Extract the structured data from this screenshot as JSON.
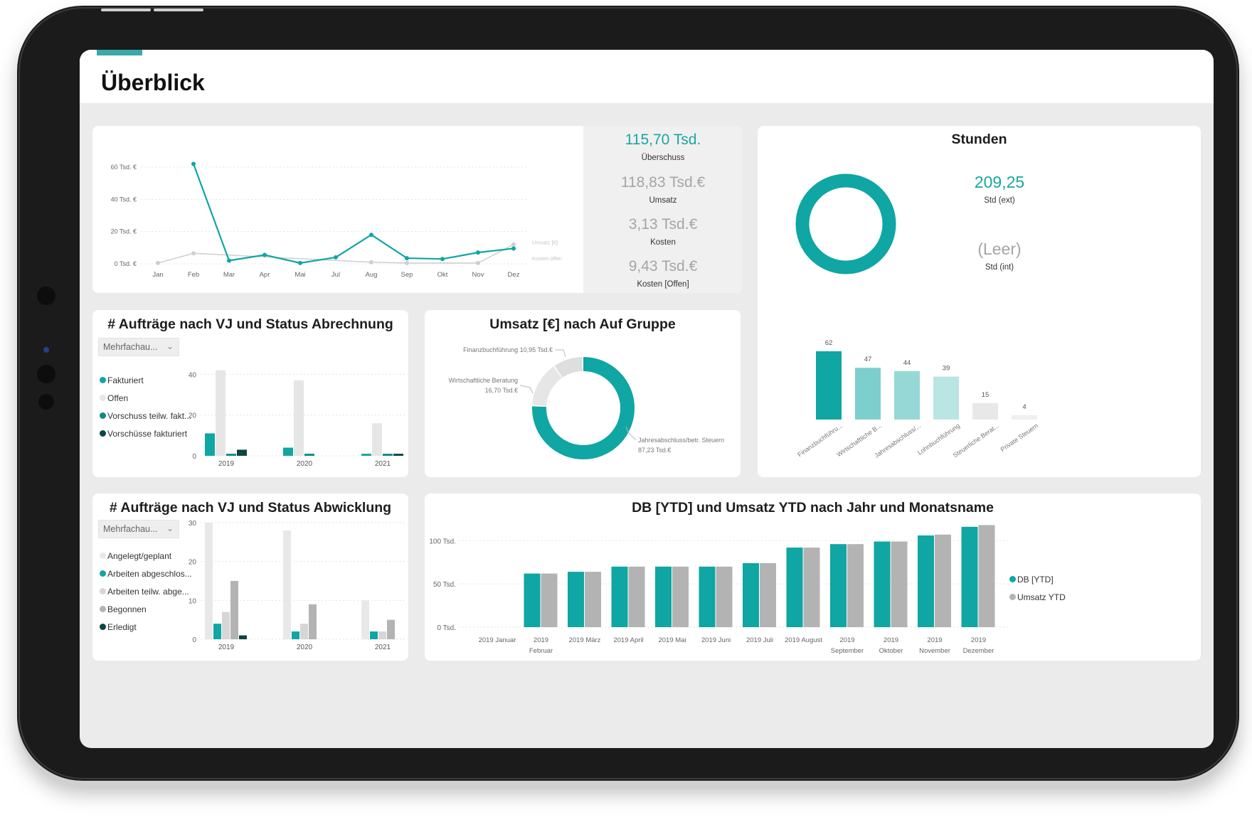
{
  "page": {
    "title": "Überblick"
  },
  "colors": {
    "teal": "#0fa6a3",
    "light_teal": "#7ccfcc",
    "gray": "#bdbdbd",
    "light_gray": "#e6e6e6",
    "dark_teal": "#0b6161",
    "dark": "#0d4444"
  },
  "kpi": [
    {
      "value": "115,70 Tsd.",
      "label": "Überschuss",
      "color": "#18a6a3"
    },
    {
      "value": "118,83 Tsd.€",
      "label": "Umsatz",
      "color": "#a5a5a5"
    },
    {
      "value": "3,13 Tsd.€",
      "label": "Kosten",
      "color": "#a5a5a5"
    },
    {
      "value": "9,43 Tsd.€",
      "label": "Kosten [Offen]",
      "color": "#a5a5a5"
    }
  ],
  "stunden": {
    "title": "Stunden",
    "ext_value": "209,25",
    "ext_label": "Std (ext)",
    "int_value": "(Leer)",
    "int_label": "Std (int)"
  },
  "slicer": {
    "label": "Mehrfachau...",
    "chevron": "chevron-down-icon"
  },
  "chart_data": [
    {
      "id": "monthly_line",
      "type": "line",
      "categories": [
        "Jan",
        "Feb",
        "Mar",
        "Apr",
        "Mai",
        "Jul",
        "Aug",
        "Sep",
        "Okt",
        "Nov",
        "Dez"
      ],
      "yticks": [
        "0 Tsd. €",
        "20 Tsd. €",
        "40 Tsd. €",
        "60 Tsd. €"
      ],
      "ylim": [
        0,
        60
      ],
      "series": [
        {
          "name": "Umsatz [€]",
          "color": "#0fa6a3",
          "values": [
            null,
            62,
            2,
            5.5,
            0.5,
            4,
            18,
            3.5,
            3,
            7,
            9.5
          ]
        },
        {
          "name": "Kosten offen",
          "color": "#cfcfcf",
          "values": [
            0.5,
            6.5,
            null,
            null,
            null,
            null,
            1,
            0.5,
            null,
            0.5,
            12
          ]
        }
      ]
    },
    {
      "id": "auftraege_abrechnung",
      "type": "bar",
      "title": "# Aufträge nach VJ und Status Abrechnung",
      "categories": [
        "2019",
        "2020",
        "2021"
      ],
      "yticks": [
        "0",
        "20",
        "40"
      ],
      "ylim": [
        0,
        45
      ],
      "series": [
        {
          "name": "Fakturiert",
          "color": "#0fa6a3",
          "values": [
            11,
            4,
            1
          ]
        },
        {
          "name": "Offen",
          "color": "#e6e6e6",
          "values": [
            42,
            37,
            16
          ]
        },
        {
          "name": "Vorschuss teilw. fakt...",
          "color": "#0b8a86",
          "values": [
            1,
            1,
            1
          ]
        },
        {
          "name": "Vorschüsse fakturiert",
          "color": "#0d4444",
          "values": [
            3,
            0,
            1
          ]
        }
      ]
    },
    {
      "id": "umsatz_gruppe",
      "type": "pie",
      "title": "Umsatz [€] nach Auf Gruppe",
      "slices": [
        {
          "label": "Jahresabschluss/betr. Steuern",
          "value_label": "87,23 Tsd.€",
          "value": 87.23,
          "color": "#0fa6a3"
        },
        {
          "label": "Wirtschaftliche Beratung",
          "value_label": "16,70 Tsd.€",
          "value": 16.7,
          "color": "#e6e6e6"
        },
        {
          "label": "Finanzbuchführung",
          "value_label": "10,95 Tsd.€",
          "value": 10.95,
          "color": "#dedede"
        }
      ]
    },
    {
      "id": "stunden_bars",
      "type": "bar",
      "categories": [
        "Finanzbuchführu...",
        "Wirtschaftliche B...",
        "Jahresabschluss/...",
        "Lohnbuchführung",
        "Steuerliche Berat...",
        "Private Steuern"
      ],
      "values": [
        62,
        47,
        44,
        39,
        15,
        4
      ],
      "colors": [
        "#0fa6a3",
        "#7ccfcc",
        "#96d8d5",
        "#b9e5e3",
        "#e8e8e8",
        "#efefef"
      ]
    },
    {
      "id": "auftraege_abwicklung",
      "type": "bar",
      "title": "# Aufträge nach VJ und Status Abwicklung",
      "categories": [
        "2019",
        "2020",
        "2021"
      ],
      "yticks": [
        "0",
        "10",
        "20",
        "30"
      ],
      "ylim": [
        0,
        30
      ],
      "series": [
        {
          "name": "Angelegt/geplant",
          "color": "#e8e8e8",
          "values": [
            30,
            28,
            10
          ]
        },
        {
          "name": "Arbeiten abgeschlos...",
          "color": "#0fa6a3",
          "values": [
            4,
            2,
            2
          ]
        },
        {
          "name": "Arbeiten teilw. abge...",
          "color": "#d6d6d6",
          "values": [
            7,
            4,
            2
          ]
        },
        {
          "name": "Begonnen",
          "color": "#b3b3b3",
          "values": [
            15,
            9,
            5
          ]
        },
        {
          "name": "Erledigt",
          "color": "#0d4444",
          "values": [
            1,
            0,
            0
          ]
        }
      ]
    },
    {
      "id": "db_umsatz_ytd",
      "type": "bar",
      "title": "DB [YTD] und Umsatz YTD nach Jahr und Monatsname",
      "categories": [
        [
          "2019 Januar"
        ],
        [
          "2019",
          "Februar"
        ],
        [
          "2019 März"
        ],
        [
          "2019 April"
        ],
        [
          "2019 Mai"
        ],
        [
          "2019 Juni"
        ],
        [
          "2019 Juli"
        ],
        [
          "2019 August"
        ],
        [
          "2019",
          "September"
        ],
        [
          "2019",
          "Oktober"
        ],
        [
          "2019",
          "November"
        ],
        [
          "2019",
          "Dezember"
        ]
      ],
      "yticks": [
        "0 Tsd.",
        "50 Tsd.",
        "100 Tsd."
      ],
      "ylim": [
        0,
        120
      ],
      "series": [
        {
          "name": "DB [YTD]",
          "color": "#0fa6a3",
          "values": [
            0,
            62,
            64,
            70,
            70,
            70,
            74,
            92,
            96,
            99,
            106,
            116
          ]
        },
        {
          "name": "Umsatz YTD",
          "color": "#b3b3b3",
          "values": [
            0,
            62,
            64,
            70,
            70,
            70,
            74,
            92,
            96,
            99,
            107,
            118
          ]
        }
      ]
    }
  ]
}
